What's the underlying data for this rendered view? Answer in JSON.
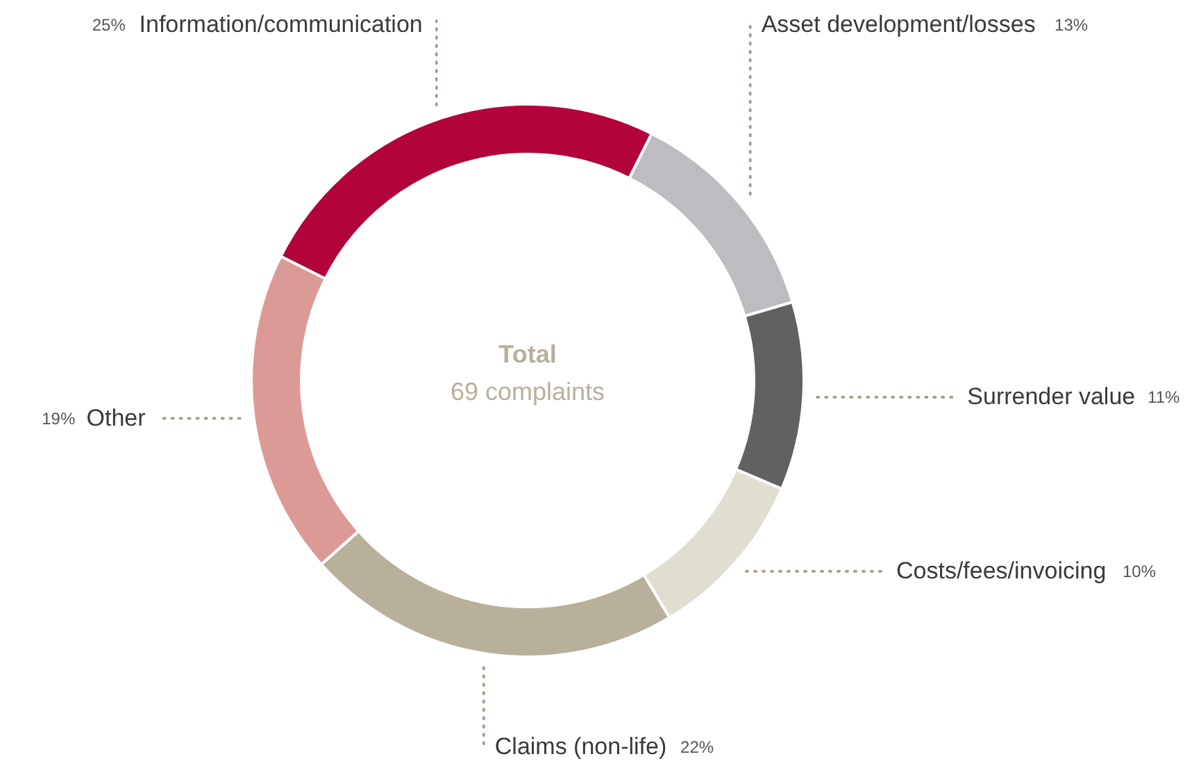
{
  "chart_data": {
    "type": "donut",
    "categories": [
      "Information/communication",
      "Asset development/losses",
      "Surrender value",
      "Costs/fees/invoicing",
      "Claims (non-life)",
      "Other"
    ],
    "values": [
      25,
      13,
      11,
      10,
      22,
      19
    ],
    "value_labels": [
      "25%",
      "13%",
      "11%",
      "10%",
      "22%",
      "19%"
    ],
    "colors": [
      "#b2033a",
      "#bcbdc0",
      "#616163",
      "#e0ddd1",
      "#b8b09a",
      "#dc9a96"
    ],
    "annotations": [
      "Total",
      "69 complaints"
    ]
  }
}
